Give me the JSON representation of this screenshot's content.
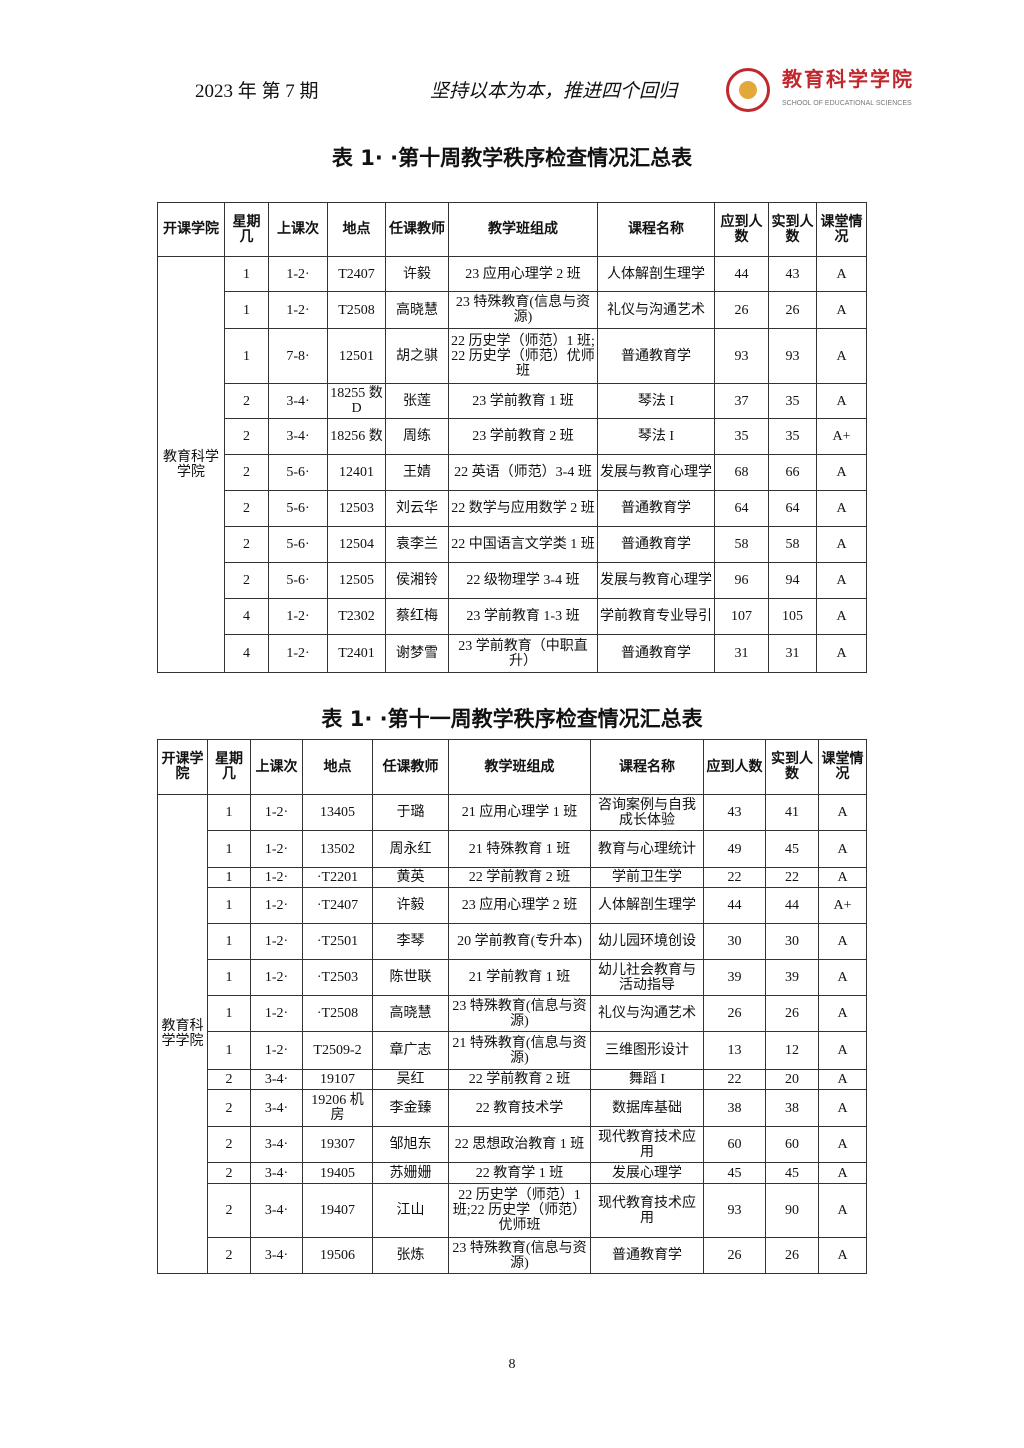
{
  "header": {
    "issue": "2023 年 第 7 期",
    "motto": "坚持以本为本，推进四个回归",
    "logo_text": "教育科学学院",
    "logo_subtext": "SCHOOL OF EDUCATIONAL SCIENCES",
    "logo_color": "#c0282d"
  },
  "columns": [
    "开课学院",
    "星期几",
    "上课次",
    "地点",
    "任课教师",
    "教学班组成",
    "课程名称",
    "应到人数",
    "实到人数",
    "课堂情况"
  ],
  "table1": {
    "title": "表 1· ·第十周教学秩序检查情况汇总表",
    "college": "教育科学学院",
    "rows": [
      [
        "1",
        "1-2·",
        "T2407",
        "许毅",
        "23 应用心理学 2 班",
        "人体解剖生理学",
        "44",
        "43",
        "A"
      ],
      [
        "1",
        "1-2·",
        "T2508",
        "高晓慧",
        "23 特殊教育(信息与资源)",
        "礼仪与沟通艺术",
        "26",
        "26",
        "A"
      ],
      [
        "1",
        "7-8·",
        "12501",
        "胡之骐",
        "22 历史学（师范）1 班;22 历史学（师范）优师班",
        "普通教育学",
        "93",
        "93",
        "A"
      ],
      [
        "2",
        "3-4·",
        "18255 数 D",
        "张莲",
        "23 学前教育 1 班",
        "琴法 I",
        "37",
        "35",
        "A"
      ],
      [
        "2",
        "3-4·",
        "18256 数",
        "周练",
        "23 学前教育 2 班",
        "琴法 I",
        "35",
        "35",
        "A+"
      ],
      [
        "2",
        "5-6·",
        "12401",
        "王婧",
        "22 英语（师范）3-4 班",
        "发展与教育心理学",
        "68",
        "66",
        "A"
      ],
      [
        "2",
        "5-6·",
        "12503",
        "刘云华",
        "22 数学与应用数学 2 班",
        "普通教育学",
        "64",
        "64",
        "A"
      ],
      [
        "2",
        "5-6·",
        "12504",
        "袁李兰",
        "22 中国语言文学类 1 班",
        "普通教育学",
        "58",
        "58",
        "A"
      ],
      [
        "2",
        "5-6·",
        "12505",
        "侯湘铃",
        "22 级物理学 3-4 班",
        "发展与教育心理学",
        "96",
        "94",
        "A"
      ],
      [
        "4",
        "1-2·",
        "T2302",
        "蔡红梅",
        "23 学前教育 1-3 班",
        "学前教育专业导引",
        "107",
        "105",
        "A"
      ],
      [
        "4",
        "1-2·",
        "T2401",
        "谢梦雪",
        "23 学前教育（中职直升）",
        "普通教育学",
        "31",
        "31",
        "A"
      ]
    ]
  },
  "table2": {
    "title": "表 1· ·第十一周教学秩序检查情况汇总表",
    "college": "教育科学学院",
    "rows": [
      [
        "1",
        "1-2·",
        "13405",
        "于璐",
        "21 应用心理学 1 班",
        "咨询案例与自我成长体验",
        "43",
        "41",
        "A"
      ],
      [
        "1",
        "1-2·",
        "13502",
        "周永红",
        "21 特殊教育 1 班",
        "教育与心理统计",
        "49",
        "45",
        "A"
      ],
      [
        "1",
        "1-2·",
        "·T2201",
        "黄英",
        "22 学前教育 2 班",
        "学前卫生学",
        "22",
        "22",
        "A"
      ],
      [
        "1",
        "1-2·",
        "·T2407",
        "许毅",
        "23 应用心理学 2 班",
        "人体解剖生理学",
        "44",
        "44",
        "A+"
      ],
      [
        "1",
        "1-2·",
        "·T2501",
        "李琴",
        "20 学前教育(专升本)",
        "幼儿园环境创设",
        "30",
        "30",
        "A"
      ],
      [
        "1",
        "1-2·",
        "·T2503",
        "陈世联",
        "21 学前教育 1 班",
        "幼儿社会教育与活动指导",
        "39",
        "39",
        "A"
      ],
      [
        "1",
        "1-2·",
        "·T2508",
        "高晓慧",
        "23 特殊教育(信息与资源)",
        "礼仪与沟通艺术",
        "26",
        "26",
        "A"
      ],
      [
        "1",
        "1-2·",
        "T2509-2",
        "章广志",
        "21 特殊教育(信息与资源)",
        "三维图形设计",
        "13",
        "12",
        "A"
      ],
      [
        "2",
        "3-4·",
        "19107",
        "吴红",
        "22 学前教育 2 班",
        "舞蹈 I",
        "22",
        "20",
        "A"
      ],
      [
        "2",
        "3-4·",
        "19206 机房",
        "李金臻",
        "22 教育技术学",
        "数据库基础",
        "38",
        "38",
        "A"
      ],
      [
        "2",
        "3-4·",
        "19307",
        "邹旭东",
        "22 思想政治教育 1 班",
        "现代教育技术应用",
        "60",
        "60",
        "A"
      ],
      [
        "2",
        "3-4·",
        "19405",
        "苏姗姗",
        "22 教育学 1 班",
        "发展心理学",
        "45",
        "45",
        "A"
      ],
      [
        "2",
        "3-4·",
        "19407",
        "江山",
        "22 历史学（师范）1 班;22 历史学（师范）优师班",
        "现代教育技术应用",
        "93",
        "90",
        "A"
      ],
      [
        "2",
        "3-4·",
        "19506",
        "张炼",
        "23 特殊教育(信息与资源)",
        "普通教育学",
        "26",
        "26",
        "A"
      ]
    ]
  },
  "page_number": "8"
}
